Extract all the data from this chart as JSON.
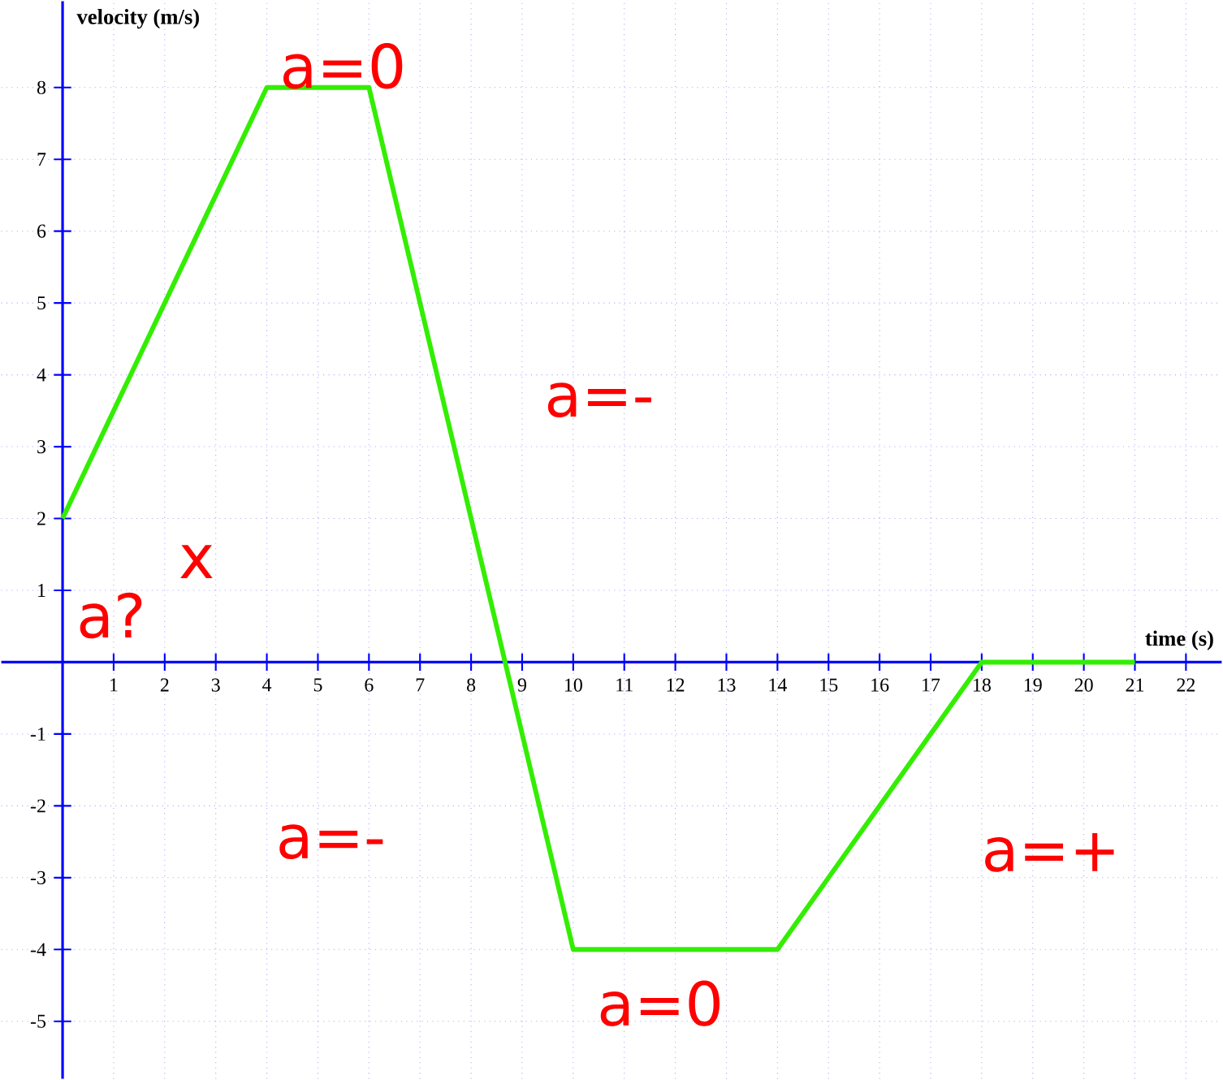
{
  "chart_data": {
    "type": "line",
    "xlabel": "time (s)",
    "ylabel": "velocity (m/s)",
    "x": [
      0,
      4,
      6,
      10,
      14,
      18,
      21
    ],
    "series": [
      {
        "color": "#33ee00",
        "values": [
          2,
          8,
          8,
          -4,
          -4,
          0,
          0
        ]
      }
    ],
    "xlim": [
      -1.2,
      22.7
    ],
    "ylim": [
      -5.8,
      9.2
    ],
    "xticks": [
      1,
      2,
      3,
      4,
      5,
      6,
      7,
      8,
      9,
      10,
      11,
      12,
      13,
      14,
      15,
      16,
      17,
      18,
      19,
      20,
      21,
      22
    ],
    "yticks": [
      -5,
      -4,
      -3,
      -2,
      -1,
      1,
      2,
      3,
      4,
      5,
      6,
      7,
      8
    ],
    "grid": true,
    "marker": "none",
    "line_style": "solid",
    "annotations": [
      "a=0",
      "a=-",
      "a?",
      "x",
      "a=-",
      "a=0",
      "a=+"
    ]
  }
}
